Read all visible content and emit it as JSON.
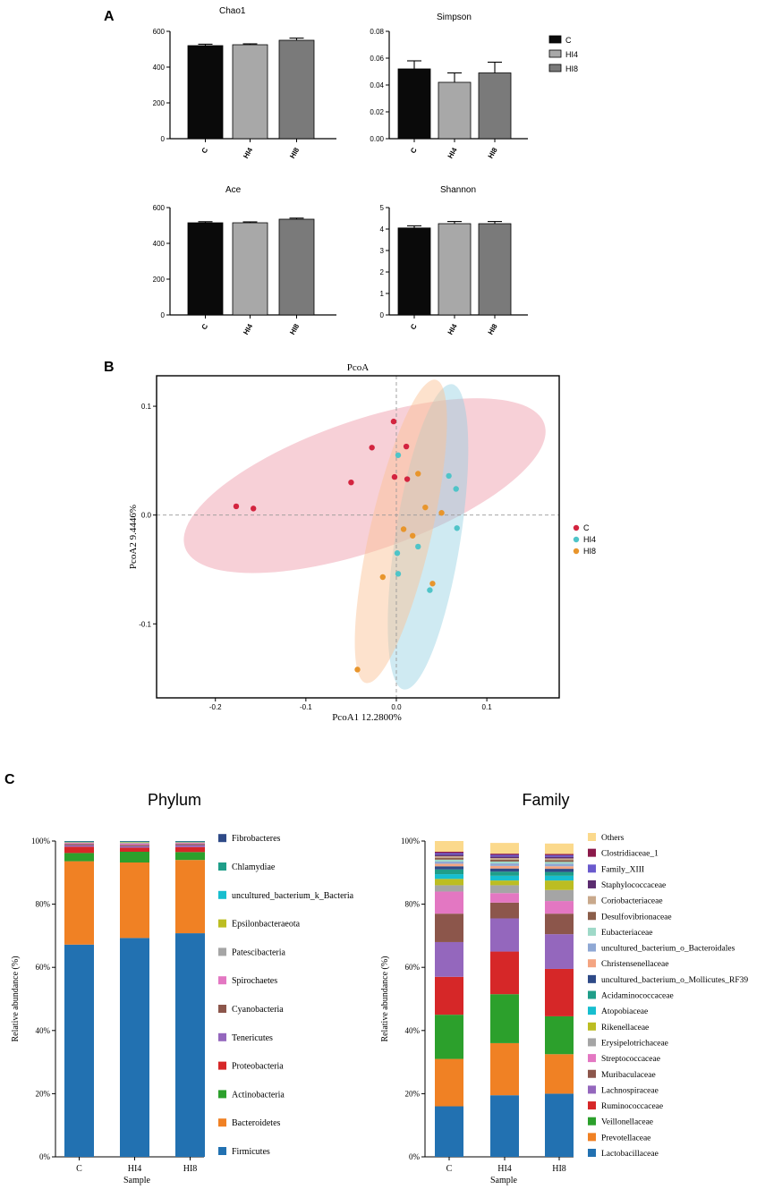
{
  "panel_labels": {
    "a": "A",
    "b": "B",
    "c": "C"
  },
  "colors": {
    "C": "#0a0a0a",
    "HI4": "#a8a8a8",
    "HI8": "#7a7a7a",
    "pcoa_C": "#d3243f",
    "pcoa_HI4": "#4fc4c8",
    "pcoa_HI8": "#e8952c"
  },
  "alpha_legend": [
    {
      "label": "C",
      "color": "#0a0a0a"
    },
    {
      "label": "HI4",
      "color": "#a8a8a8"
    },
    {
      "label": "HI8",
      "color": "#7a7a7a"
    }
  ],
  "chart_data": [
    {
      "type": "bar",
      "id": "chao1",
      "title": "Chao1",
      "categories": [
        "C",
        "HI4",
        "HI8"
      ],
      "values": [
        520,
        525,
        550
      ],
      "errors": [
        8,
        5,
        12
      ],
      "ylim": [
        0,
        600
      ],
      "yticks": [
        0,
        200,
        400,
        600
      ],
      "ytick_labels": [
        "0",
        "200",
        "400",
        "600"
      ]
    },
    {
      "type": "bar",
      "id": "simpson",
      "title": "Simpson",
      "categories": [
        "C",
        "HI4",
        "HI8"
      ],
      "values": [
        0.052,
        0.042,
        0.049
      ],
      "errors": [
        0.006,
        0.007,
        0.008
      ],
      "ylim": [
        0,
        0.08
      ],
      "yticks": [
        0,
        0.02,
        0.04,
        0.06,
        0.08
      ],
      "ytick_labels": [
        "0.00",
        "0.02",
        "0.04",
        "0.06",
        "0.08"
      ]
    },
    {
      "type": "bar",
      "id": "ace",
      "title": "Ace",
      "categories": [
        "C",
        "HI4",
        "HI8"
      ],
      "values": [
        515,
        515,
        535
      ],
      "errors": [
        6,
        5,
        6
      ],
      "ylim": [
        0,
        600
      ],
      "yticks": [
        0,
        200,
        400,
        600
      ],
      "ytick_labels": [
        "0",
        "200",
        "400",
        "600"
      ]
    },
    {
      "type": "bar",
      "id": "shannon",
      "title": "Shannon",
      "categories": [
        "C",
        "HI4",
        "HI8"
      ],
      "values": [
        4.05,
        4.25,
        4.25
      ],
      "errors": [
        0.1,
        0.1,
        0.1
      ],
      "ylim": [
        0,
        5
      ],
      "yticks": [
        0,
        1,
        2,
        3,
        4,
        5
      ],
      "ytick_labels": [
        "0",
        "1",
        "2",
        "3",
        "4",
        "5"
      ]
    },
    {
      "type": "scatter",
      "id": "pcoa",
      "title": "PcoA",
      "xlabel": "PcoA1 12.2800%",
      "ylabel": "PcoA2 9.4446%",
      "xlim": [
        -0.265,
        0.18
      ],
      "ylim": [
        -0.168,
        0.128
      ],
      "xticks": [
        -0.2,
        -0.1,
        0,
        0.1
      ],
      "xtick_labels": [
        "-0.2",
        "-0.1",
        "0.0",
        "0.1"
      ],
      "yticks": [
        -0.1,
        0,
        0.1
      ],
      "ytick_labels": [
        "-0.1",
        "0.0",
        "0.1"
      ],
      "groups": [
        {
          "name": "C",
          "color": "#d3243f",
          "fill": "rgba(230,110,130,0.32)",
          "ellipse": {
            "cx": -0.035,
            "cy": 0.027,
            "rx": 0.21,
            "ry": 0.06,
            "angle": 19
          },
          "points": [
            [
              -0.177,
              0.008
            ],
            [
              -0.158,
              0.006
            ],
            [
              -0.05,
              0.03
            ],
            [
              -0.027,
              0.062
            ],
            [
              -0.003,
              0.086
            ],
            [
              0.011,
              0.063
            ],
            [
              -0.002,
              0.035
            ],
            [
              0.012,
              0.033
            ]
          ]
        },
        {
          "name": "HI4",
          "color": "#4fc4c8",
          "fill": "rgba(140,205,225,0.42)",
          "ellipse": {
            "cx": 0.035,
            "cy": -0.02,
            "rx": 0.036,
            "ry": 0.142,
            "angle": -9
          },
          "points": [
            [
              0.002,
              0.055
            ],
            [
              0.058,
              0.036
            ],
            [
              0.066,
              0.024
            ],
            [
              0.067,
              -0.012
            ],
            [
              0.024,
              -0.029
            ],
            [
              0.001,
              -0.035
            ],
            [
              0.002,
              -0.054
            ],
            [
              0.037,
              -0.069
            ]
          ]
        },
        {
          "name": "HI8",
          "color": "#e8952c",
          "fill": "rgba(250,195,150,0.48)",
          "ellipse": {
            "cx": 0.005,
            "cy": -0.015,
            "rx": 0.034,
            "ry": 0.143,
            "angle": -13
          },
          "points": [
            [
              0.024,
              0.038
            ],
            [
              0.032,
              0.007
            ],
            [
              0.05,
              0.002
            ],
            [
              0.008,
              -0.013
            ],
            [
              0.018,
              -0.019
            ],
            [
              -0.015,
              -0.057
            ],
            [
              0.04,
              -0.063
            ],
            [
              -0.043,
              -0.142
            ]
          ]
        }
      ]
    },
    {
      "type": "stacked-bar",
      "id": "phylum",
      "title": "Phylum",
      "xlabel": "Sample",
      "ylabel": "Relative abundance (%)",
      "categories": [
        "C",
        "HI4",
        "HI8"
      ],
      "ylim": [
        0,
        100
      ],
      "yticks": [
        0,
        20,
        40,
        60,
        80,
        100
      ],
      "ytick_labels": [
        "0%",
        "20%",
        "40%",
        "60%",
        "80%",
        "100%"
      ],
      "series": [
        {
          "name": "Firmicutes",
          "color": "#2271b1",
          "values": [
            67.2,
            69.3,
            70.8
          ]
        },
        {
          "name": "Bacteroidetes",
          "color": "#f08124",
          "values": [
            26.4,
            23.9,
            23.2
          ]
        },
        {
          "name": "Actinobacteria",
          "color": "#2ca02c",
          "values": [
            2.6,
            3.4,
            2.5
          ]
        },
        {
          "name": "Proteobacteria",
          "color": "#d62728",
          "values": [
            2.0,
            1.3,
            1.6
          ]
        },
        {
          "name": "Tenericutes",
          "color": "#9467bd",
          "values": [
            0.5,
            0.5,
            0.6
          ]
        },
        {
          "name": "Cyanobacteria",
          "color": "#8c564b",
          "values": [
            0.4,
            0.4,
            0.4
          ]
        },
        {
          "name": "Spirochaetes",
          "color": "#e377c2",
          "values": [
            0.3,
            0.4,
            0.3
          ]
        },
        {
          "name": "Patescibacteria",
          "color": "#a5a5a5",
          "values": [
            0.2,
            0.3,
            0.2
          ]
        },
        {
          "name": "Epsilonbacteraeota",
          "color": "#bcbd22",
          "values": [
            0.1,
            0.2,
            0.1
          ]
        },
        {
          "name": "uncultured_bacterium_k_Bacteria",
          "color": "#17becf",
          "values": [
            0.1,
            0.1,
            0.1
          ]
        },
        {
          "name": "Chlamydiae",
          "color": "#1f9e89",
          "values": [
            0.1,
            0.1,
            0.1
          ]
        },
        {
          "name": "Fibrobacteres",
          "color": "#2e4a87",
          "values": [
            0.1,
            0.1,
            0.1
          ]
        }
      ]
    },
    {
      "type": "stacked-bar",
      "id": "family",
      "title": "Family",
      "xlabel": "Sample",
      "ylabel": "Relative abundance (%)",
      "categories": [
        "C",
        "HI4",
        "HI8"
      ],
      "ylim": [
        0,
        100
      ],
      "yticks": [
        0,
        20,
        40,
        60,
        80,
        100
      ],
      "ytick_labels": [
        "0%",
        "20%",
        "40%",
        "60%",
        "80%",
        "100%"
      ],
      "series": [
        {
          "name": "Lactobacillaceae",
          "color": "#2271b1",
          "values": [
            16,
            19.5,
            20
          ]
        },
        {
          "name": "Prevotellaceae",
          "color": "#f08124",
          "values": [
            15,
            16.5,
            12.5
          ]
        },
        {
          "name": "Veillonellaceae",
          "color": "#2ca02c",
          "values": [
            14,
            15.5,
            12
          ]
        },
        {
          "name": "Ruminococcaceae",
          "color": "#d62728",
          "values": [
            12,
            13.5,
            15
          ]
        },
        {
          "name": "Lachnospiraceae",
          "color": "#9467bd",
          "values": [
            11,
            10.5,
            11
          ]
        },
        {
          "name": "Muribaculaceae",
          "color": "#8c564b",
          "values": [
            9,
            5,
            6.5
          ]
        },
        {
          "name": "Streptococcaceae",
          "color": "#e377c2",
          "values": [
            7,
            3,
            4
          ]
        },
        {
          "name": "Erysipelotrichaceae",
          "color": "#a5a5a5",
          "values": [
            2,
            2.5,
            3.5
          ]
        },
        {
          "name": "Rikenellaceae",
          "color": "#bcbd22",
          "values": [
            2,
            1.5,
            3
          ]
        },
        {
          "name": "Atopobiaceae",
          "color": "#17becf",
          "values": [
            1.5,
            1.5,
            1.5
          ]
        },
        {
          "name": "Acidaminococcaceae",
          "color": "#1f9e89",
          "values": [
            1.5,
            1.3,
            1.2
          ]
        },
        {
          "name": "uncultured_bacterium_o_Mollicutes_RF39",
          "color": "#2e4a87",
          "values": [
            1,
            1,
            1
          ]
        },
        {
          "name": "Christensenellaceae",
          "color": "#f4a582",
          "values": [
            0.8,
            0.8,
            0.8
          ]
        },
        {
          "name": "uncultured_bacterium_o_Bacteroidales",
          "color": "#8fa8d4",
          "values": [
            0.7,
            0.8,
            0.8
          ]
        },
        {
          "name": "Eubacteriaceae",
          "color": "#9fd9c8",
          "values": [
            0.6,
            0.6,
            0.6
          ]
        },
        {
          "name": "Desulfovibrionaceae",
          "color": "#8b5e4a",
          "values": [
            0.6,
            0.6,
            0.6
          ]
        },
        {
          "name": "Coriobacteriaceae",
          "color": "#c9a98c",
          "values": [
            0.5,
            0.5,
            0.5
          ]
        },
        {
          "name": "Staphylococcaceae",
          "color": "#5b2c6f",
          "values": [
            0.5,
            0.5,
            0.5
          ]
        },
        {
          "name": "Family_XIII",
          "color": "#6a5acd",
          "values": [
            0.5,
            0.5,
            0.5
          ]
        },
        {
          "name": "Clostridiaceae_1",
          "color": "#8b1a4a",
          "values": [
            0.4,
            0.4,
            0.4
          ]
        },
        {
          "name": "Others",
          "color": "#fbd98c",
          "values": [
            3.4,
            3.4,
            3.3
          ]
        }
      ]
    }
  ]
}
